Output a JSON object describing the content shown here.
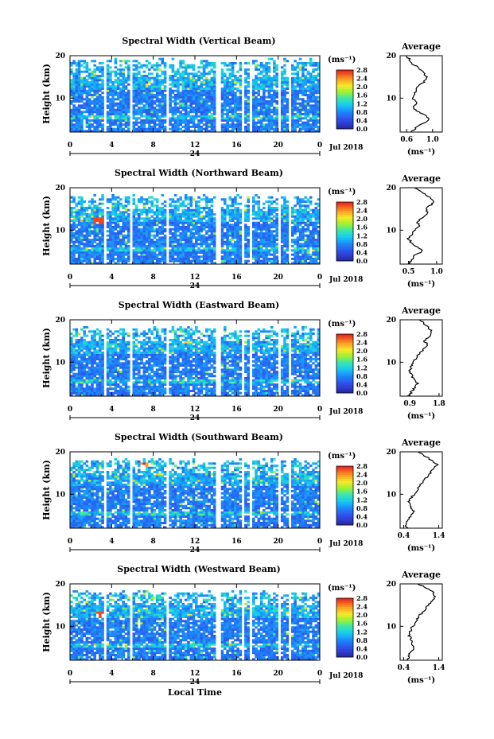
{
  "chart_data": [
    {
      "type": "heatmap",
      "title": "Spectral Width (Vertical Beam)",
      "ylabel": "Height (km)",
      "x_ticks": [
        "0",
        "4",
        "8",
        "12",
        "16",
        "20",
        "0"
      ],
      "y_ticks": [
        "10",
        "20"
      ],
      "date_marker": "24",
      "date_label": "Jul 2018",
      "xlim": [
        0,
        24
      ],
      "ylim": [
        2,
        20
      ],
      "data_gaps": [
        [
          3.2,
          3.5
        ],
        [
          5.7,
          6.0
        ],
        [
          9.2,
          9.5
        ],
        [
          14.0,
          14.5
        ],
        [
          16.4,
          16.8
        ],
        [
          17.3,
          17.6
        ],
        [
          19.9,
          20.3
        ],
        [
          20.9,
          21.2
        ]
      ],
      "colorbar": {
        "unit": "(ms⁻¹)",
        "ticks": [
          "2.8",
          "2.4",
          "2.0",
          "1.6",
          "1.2",
          "0.8",
          "0.4",
          "0.0"
        ],
        "range": [
          0,
          2.8
        ]
      },
      "average_profile": {
        "title": "Average",
        "x_ticks": [
          "0.6",
          "1.0"
        ],
        "xlim": [
          0.5,
          1.15
        ],
        "y_ticks": [
          "10",
          "20"
        ],
        "xlabel": "(ms⁻¹)",
        "height": [
          2,
          3,
          4,
          5,
          6,
          7,
          8,
          9,
          10,
          11,
          12,
          13,
          14,
          15,
          16,
          17,
          18,
          19,
          20
        ],
        "width": [
          0.65,
          0.75,
          0.85,
          0.95,
          0.9,
          0.75,
          0.7,
          0.75,
          0.7,
          0.72,
          0.75,
          0.8,
          0.88,
          0.9,
          0.85,
          0.8,
          0.7,
          0.65,
          0.6
        ]
      }
    },
    {
      "type": "heatmap",
      "title": "Spectral Width (Northward Beam)",
      "ylabel": "Height (km)",
      "x_ticks": [
        "0",
        "4",
        "8",
        "12",
        "16",
        "20",
        "0"
      ],
      "y_ticks": [
        "10",
        "20"
      ],
      "date_marker": "24",
      "date_label": "Jul 2018",
      "xlim": [
        0,
        24
      ],
      "ylim": [
        2,
        20
      ],
      "data_gaps": [
        [
          3.2,
          3.5
        ],
        [
          5.7,
          6.0
        ],
        [
          9.2,
          9.5
        ],
        [
          14.0,
          14.5
        ],
        [
          16.4,
          16.8
        ],
        [
          17.3,
          17.6
        ],
        [
          19.9,
          20.3
        ],
        [
          20.9,
          21.2
        ]
      ],
      "colorbar": {
        "unit": "(ms⁻¹)",
        "ticks": [
          "2.8",
          "2.4",
          "2.0",
          "1.6",
          "1.2",
          "0.8",
          "0.4",
          "0.0"
        ],
        "range": [
          0,
          2.8
        ]
      },
      "average_profile": {
        "title": "Average",
        "x_ticks": [
          "0.5",
          "1.0"
        ],
        "xlim": [
          0.35,
          1.1
        ],
        "y_ticks": [
          "10",
          "20"
        ],
        "xlabel": "(ms⁻¹)",
        "height": [
          2,
          3,
          4,
          5,
          6,
          7,
          8,
          9,
          10,
          11,
          12,
          13,
          14,
          15,
          16,
          17,
          18,
          19,
          20
        ],
        "width": [
          0.5,
          0.55,
          0.6,
          0.75,
          0.65,
          0.55,
          0.5,
          0.55,
          0.6,
          0.7,
          0.65,
          0.75,
          0.85,
          0.8,
          0.9,
          0.95,
          0.85,
          0.75,
          0.6
        ]
      }
    },
    {
      "type": "heatmap",
      "title": "Spectral Width (Eastward Beam)",
      "ylabel": "Height (km)",
      "x_ticks": [
        "0",
        "4",
        "8",
        "12",
        "16",
        "20",
        "0"
      ],
      "y_ticks": [
        "10",
        "20"
      ],
      "date_marker": "24",
      "date_label": "Jul 2018",
      "xlim": [
        0,
        24
      ],
      "ylim": [
        2,
        20
      ],
      "data_gaps": [
        [
          3.2,
          3.5
        ],
        [
          5.7,
          6.0
        ],
        [
          9.2,
          9.5
        ],
        [
          14.0,
          14.5
        ],
        [
          16.4,
          16.8
        ],
        [
          17.3,
          17.6
        ],
        [
          19.9,
          20.3
        ],
        [
          20.9,
          21.2
        ]
      ],
      "colorbar": {
        "unit": "(ms⁻¹)",
        "ticks": [
          "2.8",
          "2.4",
          "2.0",
          "1.6",
          "1.2",
          "0.8",
          "0.4",
          "0.0"
        ],
        "range": [
          0,
          2.8
        ]
      },
      "average_profile": {
        "title": "Average",
        "x_ticks": [
          "0.9",
          "1.8"
        ],
        "xlim": [
          0.6,
          1.9
        ],
        "y_ticks": [
          "10",
          "20"
        ],
        "xlabel": "(ms⁻¹)",
        "height": [
          2,
          3,
          4,
          5,
          6,
          7,
          8,
          9,
          10,
          11,
          12,
          13,
          14,
          15,
          16,
          17,
          18,
          19,
          20
        ],
        "width": [
          0.85,
          0.95,
          1.05,
          1.15,
          1.0,
          0.95,
          0.9,
          0.95,
          1.0,
          1.1,
          1.2,
          1.3,
          1.45,
          1.35,
          1.5,
          1.6,
          1.5,
          1.35,
          1.2
        ]
      }
    },
    {
      "type": "heatmap",
      "title": "Spectral Width (Southward Beam)",
      "ylabel": "Height (km)",
      "x_ticks": [
        "0",
        "4",
        "8",
        "12",
        "16",
        "20",
        "0"
      ],
      "y_ticks": [
        "10",
        "20"
      ],
      "date_marker": "24",
      "date_label": "Jul 2018",
      "xlim": [
        0,
        24
      ],
      "ylim": [
        2,
        20
      ],
      "data_gaps": [
        [
          3.2,
          3.5
        ],
        [
          5.7,
          6.0
        ],
        [
          9.2,
          9.5
        ],
        [
          14.0,
          14.5
        ],
        [
          16.4,
          16.8
        ],
        [
          17.3,
          17.6
        ],
        [
          19.9,
          20.3
        ],
        [
          20.9,
          21.2
        ]
      ],
      "colorbar": {
        "unit": "(ms⁻¹)",
        "ticks": [
          "2.8",
          "2.4",
          "2.0",
          "1.6",
          "1.2",
          "0.8",
          "0.4",
          "0.0"
        ],
        "range": [
          0,
          2.8
        ]
      },
      "average_profile": {
        "title": "Average",
        "x_ticks": [
          "0.4",
          "1.4"
        ],
        "xlim": [
          0.3,
          1.5
        ],
        "y_ticks": [
          "10",
          "20"
        ],
        "xlabel": "(ms⁻¹)",
        "height": [
          2,
          3,
          4,
          5,
          6,
          7,
          8,
          9,
          10,
          11,
          12,
          13,
          14,
          15,
          16,
          17,
          18,
          19,
          20
        ],
        "width": [
          0.5,
          0.45,
          0.55,
          0.6,
          0.7,
          0.6,
          0.55,
          0.6,
          0.7,
          0.8,
          0.85,
          0.95,
          1.05,
          1.15,
          1.25,
          1.35,
          1.2,
          1.0,
          0.8
        ]
      }
    },
    {
      "type": "heatmap",
      "title": "Spectral Width (Westward Beam)",
      "ylabel": "Height (km)",
      "x_ticks": [
        "0",
        "4",
        "8",
        "12",
        "16",
        "20",
        "0"
      ],
      "y_ticks": [
        "10",
        "20"
      ],
      "date_marker": "24",
      "date_label": "Jul 2018",
      "xlabel": "Local Time",
      "xlim": [
        0,
        24
      ],
      "ylim": [
        2,
        20
      ],
      "data_gaps": [
        [
          3.2,
          3.5
        ],
        [
          5.7,
          6.0
        ],
        [
          9.2,
          9.5
        ],
        [
          14.0,
          14.5
        ],
        [
          16.4,
          16.8
        ],
        [
          17.3,
          17.6
        ],
        [
          19.9,
          20.3
        ],
        [
          20.9,
          21.2
        ]
      ],
      "colorbar": {
        "unit": "(ms⁻¹)",
        "ticks": [
          "2.8",
          "2.4",
          "2.0",
          "1.6",
          "1.2",
          "0.8",
          "0.4",
          "0.0"
        ],
        "range": [
          0,
          2.8
        ]
      },
      "average_profile": {
        "title": "Average",
        "x_ticks": [
          "0.4",
          "1.4"
        ],
        "xlim": [
          0.3,
          1.5
        ],
        "y_ticks": [
          "10",
          "20"
        ],
        "xlabel": "(ms⁻¹)",
        "height": [
          2,
          3,
          4,
          5,
          6,
          7,
          8,
          9,
          10,
          11,
          12,
          13,
          14,
          15,
          16,
          17,
          18,
          19,
          20
        ],
        "width": [
          0.5,
          0.55,
          0.6,
          0.7,
          0.65,
          0.6,
          0.55,
          0.6,
          0.65,
          0.75,
          0.8,
          0.9,
          1.0,
          1.1,
          1.2,
          1.3,
          1.25,
          1.05,
          0.8
        ]
      }
    }
  ]
}
